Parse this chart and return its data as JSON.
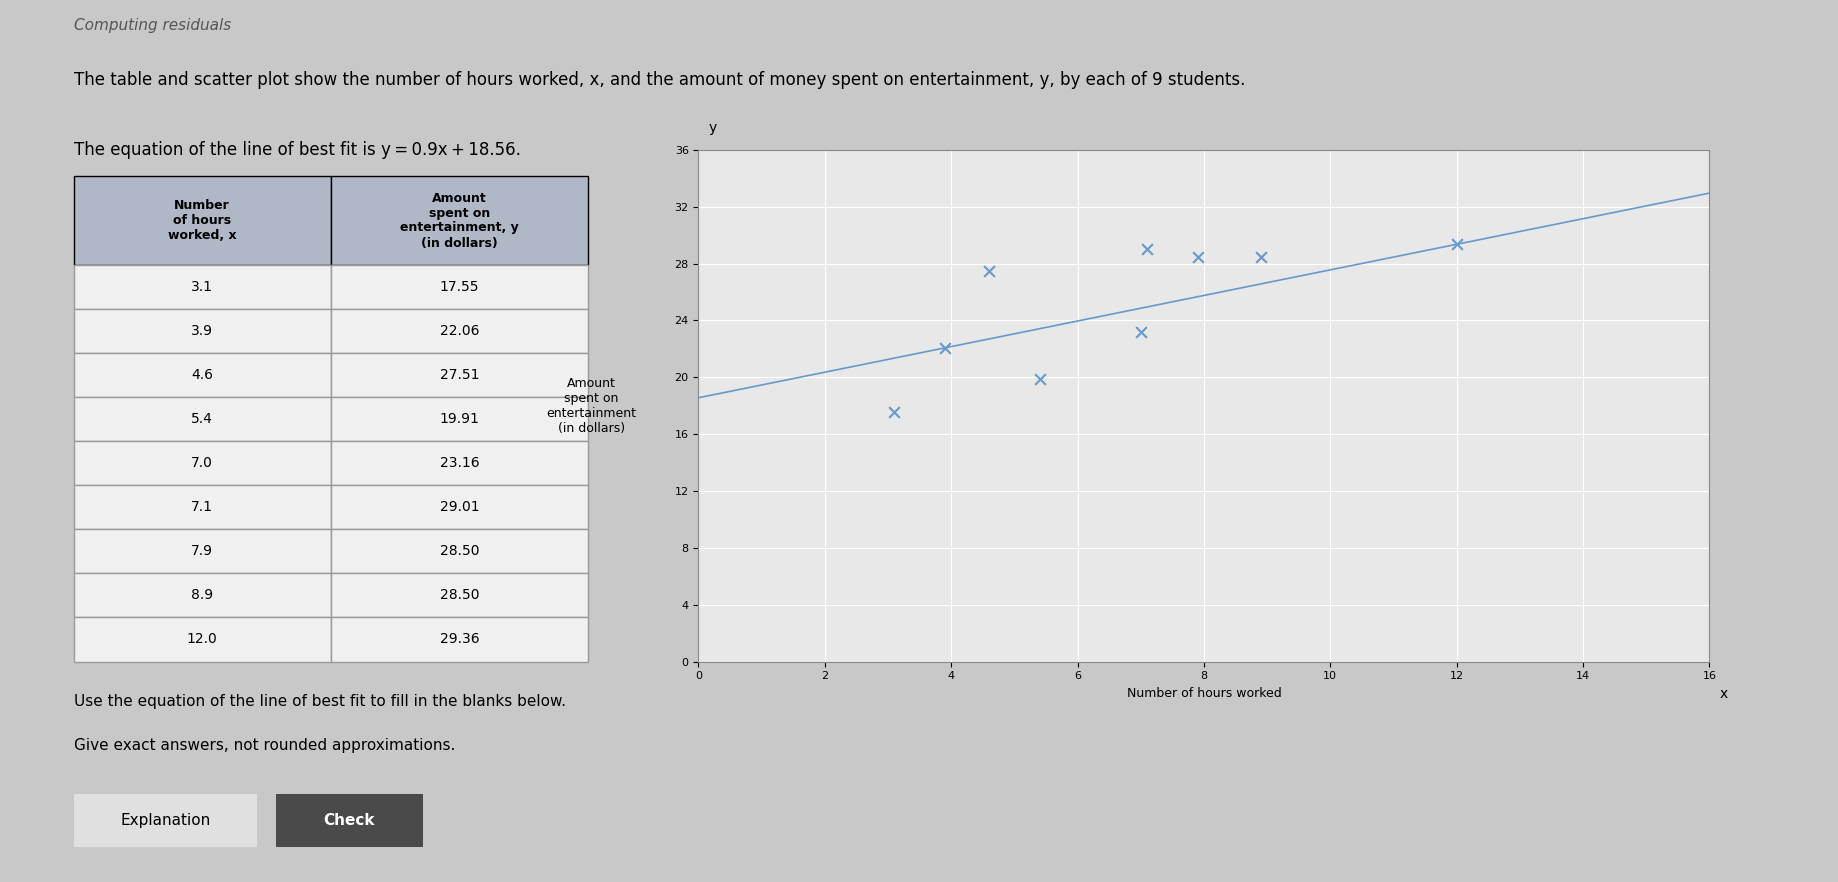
{
  "x_data": [
    3.1,
    3.9,
    4.6,
    5.4,
    7.0,
    7.1,
    7.9,
    8.9,
    12.0
  ],
  "y_data": [
    17.55,
    22.06,
    27.51,
    19.91,
    23.16,
    29.01,
    28.5,
    28.5,
    29.36
  ],
  "slope": 0.9,
  "intercept": 18.56,
  "table_col1": [
    "Number\nof hours\nworked, x",
    "3.1",
    "3.9",
    "4.6",
    "5.4",
    "7.0",
    "7.1",
    "7.9",
    "8.9",
    "12.0"
  ],
  "table_col2": [
    "Amount\nspent on\nentertainment, y\n(in dollars)",
    "17.55",
    "22.06",
    "27.51",
    "19.91",
    "23.16",
    "29.01",
    "28.50",
    "28.50",
    "29.36"
  ],
  "title_text": "The table and scatter plot show the number of hours worked, x, and the amount of money spent on entertainment, y, by each of 9 students.",
  "equation_text": "The equation of the line of best fit is y 0.9x 18.56.",
  "ylabel": "Amount\nspent on\nentertainment\n(in dollars)",
  "xlabel": "Number of hours worked",
  "xlim": [
    0,
    16
  ],
  "ylim": [
    0,
    36
  ],
  "xticks": [
    0,
    2,
    4,
    6,
    8,
    10,
    12,
    14,
    16
  ],
  "yticks": [
    0,
    4,
    8,
    12,
    16,
    20,
    24,
    28,
    32,
    36
  ],
  "scatter_color": "#6699cc",
  "line_color": "#6699cc",
  "bg_color": "#d8d8d8",
  "plot_bg_color": "#e8e8e8",
  "footer_text1": "Use the equation of the line of best fit to fill in the blanks below.",
  "footer_text2": "Give exact answers, not rounded approximations.",
  "btn1_text": "Explanation",
  "btn2_text": "Check"
}
